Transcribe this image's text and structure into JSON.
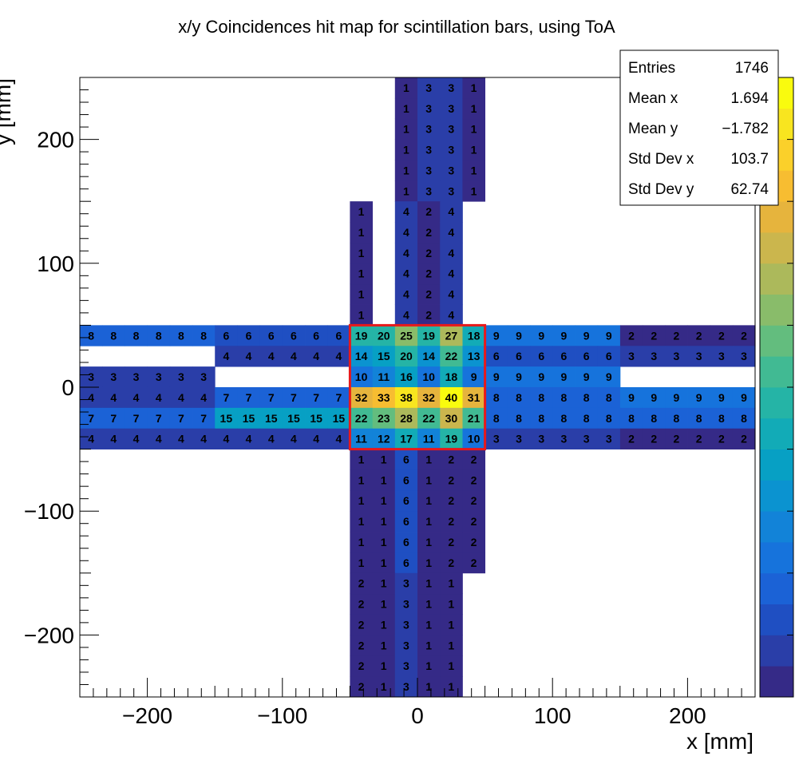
{
  "chart_data": {
    "type": "heatmap",
    "title": "x/y Coincidences hit map for scintillation bars, using ToA",
    "xlabel": "x [mm]",
    "ylabel": "y [mm]",
    "xlim": [
      -250,
      250
    ],
    "ylim": [
      -250,
      250
    ],
    "x_ticks": [
      -200,
      -100,
      0,
      100,
      200
    ],
    "y_ticks": [
      -200,
      -100,
      0,
      100,
      200
    ],
    "x_tick_labels": [
      "−200",
      "−100",
      "0",
      "100",
      "200"
    ],
    "y_tick_labels": [
      "−200",
      "−100",
      "0",
      "100",
      "200"
    ],
    "z_range": [
      1,
      40
    ],
    "colormap": [
      "#352a87",
      "#2a3ea8",
      "#1f4fc2",
      "#1b62d6",
      "#1673dc",
      "#1283d8",
      "#0b93d0",
      "#07a0c4",
      "#12abb7",
      "#25b4a6",
      "#41ba93",
      "#63bd7e",
      "#89bc6a",
      "#acb95b",
      "#cbb64d",
      "#e6b43d",
      "#f7bd31",
      "#fbd02a",
      "#f8e51f",
      "#f9fb0e"
    ],
    "highlight_box": {
      "x": [
        -50,
        50
      ],
      "y": [
        -50,
        50
      ],
      "color": "#e8191b"
    },
    "stats": {
      "rows": [
        {
          "label": "Entries",
          "value": "1746"
        },
        {
          "label": "Mean x",
          "value": "1.694"
        },
        {
          "label": "Mean y",
          "value": "−1.782"
        },
        {
          "label": "Std Dev x",
          "value": "103.7"
        },
        {
          "label": "Std Dev y",
          "value": "62.74"
        }
      ]
    },
    "blocks": [
      {
        "name": "top-vertical-bars",
        "x0": -16.67,
        "dx": 16.67,
        "y0": 150,
        "dy": 16.67,
        "columns": [
          [
            1,
            1,
            1,
            1,
            1,
            1
          ],
          [
            3,
            3,
            3,
            3,
            3,
            3
          ],
          [
            3,
            3,
            3,
            3,
            3,
            3
          ],
          [
            1,
            1,
            1,
            1,
            1,
            1
          ]
        ]
      },
      {
        "name": "upper-middle-vertical-bars",
        "x0": -50,
        "dx": 16.67,
        "y0": 50,
        "dy": 16.67,
        "columns": [
          [
            1,
            1,
            1,
            1,
            1,
            1
          ],
          null,
          [
            4,
            4,
            4,
            4,
            4,
            4
          ],
          [
            2,
            2,
            2,
            2,
            2,
            2
          ],
          [
            4,
            4,
            4,
            4,
            4,
            4
          ]
        ]
      },
      {
        "name": "lower-middle-vertical-bars",
        "x0": -50,
        "dx": 16.67,
        "y0": -150,
        "dy": 16.67,
        "columns": [
          [
            1,
            1,
            1,
            1,
            1,
            1
          ],
          [
            1,
            1,
            1,
            1,
            1,
            1
          ],
          [
            6,
            6,
            6,
            6,
            6,
            6
          ],
          [
            1,
            1,
            1,
            1,
            1,
            1
          ],
          [
            2,
            2,
            2,
            2,
            2,
            2
          ],
          [
            2,
            2,
            2,
            2,
            2,
            2
          ]
        ]
      },
      {
        "name": "bottom-vertical-bars",
        "x0": -50,
        "dx": 16.67,
        "y0": -250,
        "dy": 16.67,
        "columns": [
          [
            2,
            2,
            2,
            2,
            2,
            2
          ],
          [
            1,
            1,
            1,
            1,
            1,
            1
          ],
          [
            3,
            3,
            3,
            3,
            3,
            3
          ],
          [
            1,
            1,
            1,
            1,
            1,
            1
          ],
          [
            1,
            1,
            1,
            1,
            1,
            1
          ]
        ]
      },
      {
        "name": "horizontal-bars",
        "x0": -250,
        "dx": 16.67,
        "y0": -50,
        "dy": 16.67,
        "rows_top_down": [
          [
            8,
            8,
            8,
            8,
            8,
            8,
            6,
            6,
            6,
            6,
            6,
            6,
            19,
            20,
            25,
            19,
            27,
            18,
            9,
            9,
            9,
            9,
            9,
            9,
            2,
            2,
            2,
            2,
            2,
            2
          ],
          [
            null,
            null,
            null,
            null,
            null,
            null,
            4,
            4,
            4,
            4,
            4,
            4,
            14,
            15,
            20,
            14,
            22,
            13,
            6,
            6,
            6,
            6,
            6,
            6,
            3,
            3,
            3,
            3,
            3,
            3
          ],
          [
            3,
            3,
            3,
            3,
            3,
            3,
            null,
            null,
            null,
            null,
            null,
            null,
            10,
            11,
            16,
            10,
            18,
            9,
            9,
            9,
            9,
            9,
            9,
            9,
            null,
            null,
            null,
            null,
            null,
            null
          ],
          [
            4,
            4,
            4,
            4,
            4,
            4,
            7,
            7,
            7,
            7,
            7,
            7,
            32,
            33,
            38,
            32,
            40,
            31,
            8,
            8,
            8,
            8,
            8,
            8,
            9,
            9,
            9,
            9,
            9,
            9
          ],
          [
            7,
            7,
            7,
            7,
            7,
            7,
            15,
            15,
            15,
            15,
            15,
            15,
            22,
            23,
            28,
            22,
            30,
            21,
            8,
            8,
            8,
            8,
            8,
            8,
            8,
            8,
            8,
            8,
            8,
            8
          ],
          [
            4,
            4,
            4,
            4,
            4,
            4,
            4,
            4,
            4,
            4,
            4,
            4,
            11,
            12,
            17,
            11,
            19,
            10,
            3,
            3,
            3,
            3,
            3,
            3,
            2,
            2,
            2,
            2,
            2,
            2
          ]
        ]
      }
    ]
  }
}
